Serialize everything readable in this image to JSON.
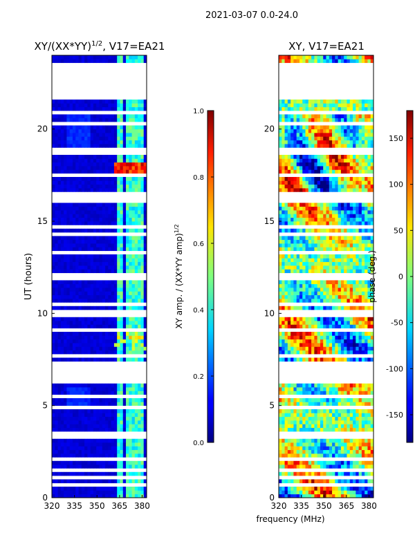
{
  "figure": {
    "suptitle": "2021-03-07 0.0-24.0",
    "xlabel": "frequency (MHz)",
    "cbar_tick_size_note": ""
  },
  "colors": {
    "jet_low": "#00007f",
    "jet_mid": "#7fff7f",
    "jet_high": "#7f0000",
    "flag_white": "#ffffff",
    "axis": "#000000"
  },
  "chart_data": [
    {
      "type": "heatmap",
      "id": "amp",
      "title": "XY/(XX*YY)",
      "title_sup": "1/2",
      "title_suffix": ", V17=EA21",
      "ylabel": "UT (hours)",
      "xlim": [
        320,
        383
      ],
      "ylim": [
        0,
        24
      ],
      "xticks": [
        320,
        335,
        350,
        365,
        380
      ],
      "yticks": [
        0,
        5,
        10,
        15,
        20
      ],
      "colorbar": {
        "label": "XY amp. / (XX*YY amp)",
        "label_sup": "1/2",
        "range": [
          0.0,
          1.0
        ],
        "ticks": [
          "0.0",
          "0.2",
          "0.4",
          "0.6",
          "0.8",
          "1.0"
        ]
      },
      "flagged_hours": [
        [
          21.55,
          23.55
        ],
        [
          6.45,
          7.35
        ],
        [
          16.2,
          16.35
        ],
        [
          11.9,
          12.1
        ],
        [
          3.0,
          3.05
        ],
        [
          2.75,
          2.85
        ],
        [
          18.0,
          18.05
        ],
        [
          13.55,
          13.6
        ],
        [
          10.05,
          10.1
        ],
        [
          8.35,
          8.4
        ],
        [
          5.2,
          5.25
        ],
        [
          1.5,
          1.55
        ]
      ],
      "bright_channels_mhz": [
        364,
        367,
        370,
        373,
        376,
        379
      ]
    },
    {
      "type": "heatmap",
      "id": "phase",
      "title": "XY, V17=EA21",
      "ylabel": "",
      "xlim": [
        320,
        383
      ],
      "ylim": [
        0,
        24
      ],
      "xticks": [
        320,
        335,
        350,
        365,
        380
      ],
      "yticks": [
        0,
        5,
        10,
        15,
        20
      ],
      "colorbar": {
        "label": "phase (deg.)",
        "range": [
          -180,
          180
        ],
        "ticks": [
          "-150",
          "-100",
          "-50",
          "0",
          "50",
          "100",
          "150"
        ]
      }
    }
  ]
}
